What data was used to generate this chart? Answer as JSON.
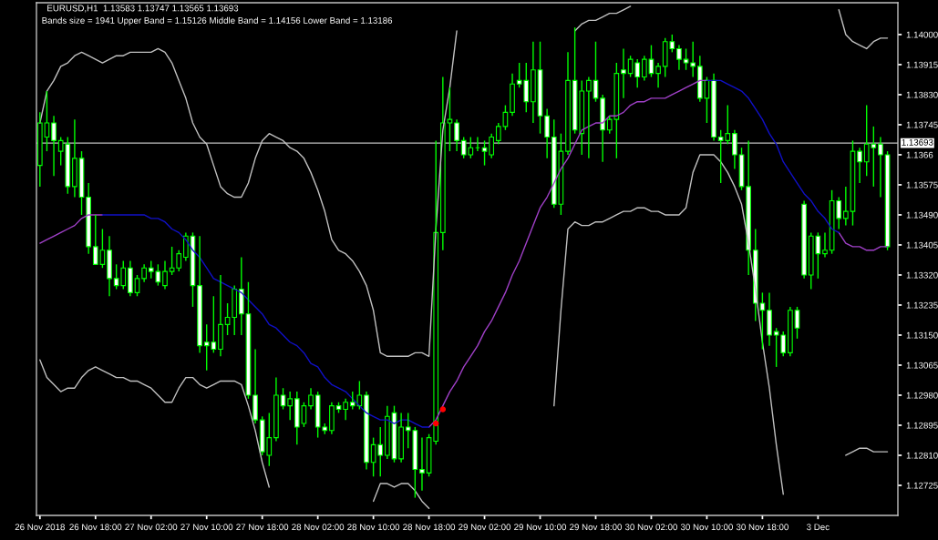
{
  "chart_data": {
    "type": "candlestick",
    "title": "EURUSD,H1  1.13583 1.13747 1.13565 1.13693",
    "subtitle": "Bands size = 1941 Upper Band = 1.15126 Middle Band = 1.14156 Lower Band = 1.13186",
    "categories": [
      "26 Nov 2018",
      null,
      null,
      null,
      null,
      null,
      null,
      null,
      "26 Nov 18:00",
      null,
      null,
      null,
      null,
      null,
      null,
      null,
      "27 Nov 02:00",
      null,
      null,
      null,
      null,
      null,
      null,
      null,
      "27 Nov 10:00",
      null,
      null,
      null,
      null,
      null,
      null,
      null,
      "27 Nov 18:00",
      null,
      null,
      null,
      null,
      null,
      null,
      null,
      "28 Nov 02:00",
      null,
      null,
      null,
      null,
      null,
      null,
      null,
      "28 Nov 10:00",
      null,
      null,
      null,
      null,
      null,
      null,
      null,
      "28 Nov 18:00",
      null,
      null,
      null,
      null,
      null,
      null,
      null,
      "29 Nov 02:00",
      null,
      null,
      null,
      null,
      null,
      null,
      null,
      "29 Nov 10:00",
      null,
      null,
      null,
      null,
      null,
      null,
      null,
      "29 Nov 18:00",
      null,
      null,
      null,
      null,
      null,
      null,
      null,
      "30 Nov 02:00",
      null,
      null,
      null,
      null,
      null,
      null,
      null,
      "30 Nov 10:00",
      null,
      null,
      null,
      null,
      null,
      null,
      null,
      "30 Nov 18:00",
      null,
      null,
      null,
      null,
      null,
      null,
      null,
      "3 Dec",
      null,
      null,
      null,
      null,
      null,
      null,
      null,
      null,
      null,
      null
    ],
    "ylim": [
      1.1264,
      1.1409
    ],
    "yticks": [
      1.12725,
      {
        "value": 1.1281,
        "label": "1.12810"
      },
      1.12895,
      {
        "value": 1.1298,
        "label": "1.12980"
      },
      1.13065,
      {
        "value": 1.1315,
        "label": "1.13150"
      },
      1.13235,
      {
        "value": 1.1332,
        "label": "1.13320"
      },
      1.13405,
      {
        "value": 1.1349,
        "label": "1.13490"
      },
      1.13575,
      1.1366,
      1.13745,
      {
        "value": 1.1383,
        "label": "1.13830"
      },
      1.13915,
      {
        "value": 1.14,
        "label": "1.14000"
      }
    ],
    "grid": false,
    "ref_lines": [
      {
        "axis": "y",
        "value": 1.13693,
        "label": "1.13693",
        "color": "#c0c0c0"
      }
    ],
    "series": [
      {
        "type": "line",
        "color": "#c0c0c0",
        "values": [
          1.1375,
          1.1384,
          1.1387,
          1.1391,
          1.1392,
          1.1394,
          1.1395,
          1.1394,
          1.1393,
          1.1392,
          1.1393,
          1.1394,
          1.1394,
          1.1395,
          1.1395,
          1.1395,
          1.1395,
          1.1396,
          1.1395,
          1.1392,
          1.1387,
          1.1382,
          1.1375,
          1.1371,
          1.1369,
          1.1363,
          1.1357,
          1.1355,
          1.1354,
          1.1354,
          1.1358,
          1.1365,
          1.137,
          1.1372,
          1.1371,
          1.137,
          1.1368,
          1.1367,
          1.1365,
          1.1361,
          1.1356,
          1.135,
          1.1342,
          1.1339,
          1.1338,
          1.1336,
          1.1333,
          1.1329,
          1.1322,
          1.131,
          1.1309,
          1.1309,
          1.1309,
          1.1309,
          1.131,
          1.131,
          1.1309,
          1.1345,
          1.1373,
          1.1385,
          1.1401,
          null,
          null,
          null,
          null,
          null,
          null,
          null,
          null,
          null,
          null,
          null,
          null,
          null,
          null,
          null,
          null,
          1.1401,
          1.1403,
          1.1404,
          1.1404,
          1.1405,
          1.1406,
          1.1406,
          1.1407,
          1.1408,
          null,
          null,
          null,
          null,
          null,
          null,
          null,
          null,
          null,
          null,
          null,
          null,
          null,
          null,
          null,
          null,
          null,
          null,
          null,
          null,
          null,
          null,
          null,
          null,
          null,
          null,
          null,
          null,
          null,
          1.1407,
          1.14,
          1.1398,
          1.1397,
          1.1396,
          1.1398,
          1.1399,
          1.1399
        ]
      },
      {
        "type": "line",
        "color": "#c0c0c0",
        "values": [
          1.1308,
          1.1303,
          1.1301,
          1.1299,
          1.13,
          1.13,
          1.1303,
          1.1305,
          1.1306,
          1.1305,
          1.1304,
          1.1303,
          1.1303,
          1.1302,
          1.1302,
          1.1301,
          1.13,
          1.1298,
          1.1296,
          1.1296,
          1.13,
          1.1303,
          1.1303,
          1.1301,
          1.13,
          1.1301,
          1.1302,
          1.1302,
          1.1302,
          1.1301,
          1.1295,
          1.1288,
          1.1279,
          1.1272,
          null,
          null,
          null,
          null,
          null,
          null,
          null,
          null,
          null,
          null,
          null,
          null,
          null,
          null,
          1.1268,
          1.1273,
          1.1273,
          1.1272,
          1.1273,
          1.1273,
          1.1271,
          1.1268,
          1.1266,
          null,
          null,
          null,
          null,
          null,
          null,
          null,
          null,
          null,
          null,
          null,
          null,
          null,
          null,
          null,
          null,
          null,
          1.1295,
          1.1322,
          1.1345,
          1.1347,
          1.1346,
          1.1346,
          1.1347,
          1.1347,
          1.1348,
          1.1349,
          1.135,
          1.135,
          1.1351,
          1.1351,
          1.135,
          1.135,
          1.1349,
          1.1349,
          1.1349,
          1.1351,
          1.1361,
          1.1366,
          1.1366,
          1.1366,
          1.1364,
          1.1361,
          1.1357,
          1.1352,
          1.1341,
          1.1328,
          1.1313,
          1.13,
          1.1284,
          1.127,
          null,
          null,
          null,
          null,
          null,
          null,
          null,
          null,
          1.1281,
          1.1282,
          1.1283,
          1.1283,
          1.1282,
          1.1282,
          1.1282
        ]
      },
      {
        "type": "line",
        "color": "#a040c8",
        "values": [
          1.1341,
          1.1342,
          1.1343,
          1.1344,
          1.1345,
          1.1346,
          1.1348,
          1.1349,
          1.1349,
          1.1349,
          null,
          null,
          null,
          null,
          null,
          null,
          null,
          null,
          null,
          null,
          null,
          null,
          null,
          null,
          null,
          null,
          null,
          null,
          null,
          null,
          null,
          null,
          null,
          null,
          null,
          null,
          null,
          null,
          null,
          null,
          null,
          null,
          null,
          null,
          null,
          null,
          null,
          null,
          null,
          null,
          null,
          null,
          null,
          null,
          null,
          null,
          1.1289,
          1.1291,
          1.1295,
          1.1299,
          1.1302,
          1.1306,
          1.1309,
          1.1312,
          1.1316,
          1.1319,
          1.1323,
          1.1327,
          1.1332,
          1.1336,
          1.1341,
          1.1346,
          1.1351,
          1.1354,
          1.1358,
          1.1362,
          1.1365,
          1.1369,
          1.1373,
          1.1374,
          1.1375,
          1.1375,
          1.1377,
          1.1377,
          1.1378,
          1.138,
          1.1381,
          1.1381,
          1.1382,
          1.1382,
          1.1382,
          1.1383,
          1.1384,
          1.1385,
          1.1386,
          1.1387,
          1.1387,
          null,
          null,
          null,
          null,
          null,
          null,
          null,
          null,
          null,
          null,
          null,
          null,
          null,
          null,
          null,
          null,
          null,
          null,
          1.1344,
          1.1341,
          1.134,
          1.134,
          1.1339,
          1.1339,
          1.134,
          1.134
        ]
      },
      {
        "type": "line",
        "color": "#1010c8",
        "values": [
          null,
          null,
          null,
          null,
          null,
          null,
          null,
          null,
          null,
          1.1349,
          1.1349,
          1.1349,
          1.1349,
          1.1349,
          1.1349,
          1.1349,
          1.1348,
          1.1348,
          1.1347,
          1.1345,
          1.1344,
          1.1342,
          1.1339,
          1.1337,
          1.1334,
          1.1331,
          1.133,
          1.1329,
          1.1328,
          1.1327,
          1.1325,
          1.1323,
          1.1321,
          1.1318,
          1.1317,
          1.1315,
          1.1313,
          1.1312,
          1.131,
          1.1307,
          1.1306,
          1.1303,
          1.1301,
          1.13,
          1.1299,
          1.1297,
          1.1295,
          1.1293,
          1.1292,
          1.1291,
          1.1291,
          1.129,
          1.1291,
          1.1291,
          1.129,
          1.1289,
          1.1289,
          null,
          null,
          null,
          null,
          null,
          null,
          null,
          null,
          null,
          null,
          null,
          null,
          null,
          null,
          null,
          null,
          null,
          null,
          null,
          null,
          null,
          null,
          null,
          null,
          null,
          null,
          null,
          null,
          null,
          null,
          null,
          null,
          null,
          null,
          null,
          null,
          null,
          null,
          null,
          1.1387,
          1.1387,
          1.1387,
          1.1386,
          1.1385,
          1.1384,
          1.1382,
          1.1379,
          1.1376,
          1.1372,
          1.1369,
          1.1364,
          1.1361,
          1.1358,
          1.1355,
          1.1353,
          1.135,
          1.1348,
          1.1345,
          1.1344,
          null,
          null,
          null,
          null,
          null,
          null,
          null
        ]
      },
      {
        "type": "candlestick",
        "color": "#00ff00",
        "ohlc": [
          [
            1.1363,
            1.1378,
            1.1357,
            1.1375
          ],
          [
            1.1371,
            1.1384,
            1.1367,
            1.1375
          ],
          [
            1.1375,
            1.1377,
            1.136,
            1.137
          ],
          [
            1.1367,
            1.1371,
            1.1363,
            1.137
          ],
          [
            1.1369,
            1.1371,
            1.1355,
            1.1357
          ],
          [
            1.1357,
            1.1376,
            1.1354,
            1.1365
          ],
          [
            1.1365,
            1.1367,
            1.1349,
            1.1354
          ],
          [
            1.1354,
            1.1358,
            1.1338,
            1.134
          ],
          [
            1.134,
            1.1349,
            1.1335,
            1.1335
          ],
          [
            1.1335,
            1.1345,
            1.1334,
            1.1339
          ],
          [
            1.1339,
            1.1343,
            1.1326,
            1.1331
          ],
          [
            1.1331,
            1.1335,
            1.1328,
            1.1329
          ],
          [
            1.1329,
            1.1336,
            1.1328,
            1.1334
          ],
          [
            1.1334,
            1.1336,
            1.1326,
            1.1327
          ],
          [
            1.1327,
            1.1332,
            1.1326,
            1.1331
          ],
          [
            1.1331,
            1.1335,
            1.133,
            1.1334
          ],
          [
            1.1334,
            1.1336,
            1.1331,
            1.1333
          ],
          [
            1.1333,
            1.1335,
            1.1329,
            1.133
          ],
          [
            1.1329,
            1.1336,
            1.1328,
            1.1333
          ],
          [
            1.1333,
            1.134,
            1.1332,
            1.1334
          ],
          [
            1.1334,
            1.1339,
            1.1333,
            1.1338
          ],
          [
            1.1337,
            1.1344,
            1.1336,
            1.1343
          ],
          [
            1.1343,
            1.1344,
            1.1323,
            1.1329
          ],
          [
            1.1329,
            1.1343,
            1.131,
            1.1312
          ],
          [
            1.1313,
            1.1318,
            1.1305,
            1.1312
          ],
          [
            1.1313,
            1.1326,
            1.131,
            1.1311
          ],
          [
            1.1311,
            1.1332,
            1.1309,
            1.1318
          ],
          [
            1.1318,
            1.1324,
            1.1315,
            1.132
          ],
          [
            1.132,
            1.1329,
            1.1315,
            1.1328
          ],
          [
            1.1328,
            1.1337,
            1.1315,
            1.1321
          ],
          [
            1.1321,
            1.133,
            1.1297,
            1.1298
          ],
          [
            1.1298,
            1.1311,
            1.129,
            1.1291
          ],
          [
            1.1291,
            1.1292,
            1.1281,
            1.1282
          ],
          [
            1.1281,
            1.1293,
            1.1278,
            1.1286
          ],
          [
            1.1286,
            1.1303,
            1.1285,
            1.1298
          ],
          [
            1.1298,
            1.13,
            1.1294,
            1.1295
          ],
          [
            1.1295,
            1.1299,
            1.1291,
            1.1297
          ],
          [
            1.1297,
            1.1299,
            1.1284,
            1.1289
          ],
          [
            1.129,
            1.1296,
            1.1289,
            1.1295
          ],
          [
            1.1295,
            1.13,
            1.1294,
            1.1298
          ],
          [
            1.1298,
            1.1299,
            1.1286,
            1.1289
          ],
          [
            1.1289,
            1.129,
            1.1287,
            1.1288
          ],
          [
            1.1288,
            1.1296,
            1.1287,
            1.1295
          ],
          [
            1.1295,
            1.1296,
            1.1293,
            1.1294
          ],
          [
            1.1294,
            1.1297,
            1.1291,
            1.1296
          ],
          [
            1.1296,
            1.1299,
            1.1294,
            1.1295
          ],
          [
            1.1295,
            1.1302,
            1.1294,
            1.1298
          ],
          [
            1.1298,
            1.1299,
            1.1277,
            1.1279
          ],
          [
            1.1279,
            1.1286,
            1.1275,
            1.1284
          ],
          [
            1.1284,
            1.1289,
            1.1275,
            1.1281
          ],
          [
            1.1281,
            1.1295,
            1.128,
            1.1292
          ],
          [
            1.1293,
            1.1295,
            1.1279,
            1.128
          ],
          [
            1.128,
            1.1293,
            1.1279,
            1.1289
          ],
          [
            1.1289,
            1.1293,
            1.1283,
            1.1288
          ],
          [
            1.1288,
            1.1289,
            1.1269,
            1.1277
          ],
          [
            1.1277,
            1.1286,
            1.1271,
            1.1276
          ],
          [
            1.1276,
            1.1287,
            1.1275,
            1.1286
          ],
          [
            1.1285,
            1.137,
            1.1284,
            1.1344
          ],
          [
            1.1344,
            1.1388,
            1.1339,
            1.1375
          ],
          [
            1.1375,
            1.1385,
            1.1367,
            1.1376
          ],
          [
            1.1375,
            1.1376,
            1.1367,
            1.137
          ],
          [
            1.137,
            1.1371,
            1.1365,
            1.1366
          ],
          [
            1.1366,
            1.1371,
            1.1365,
            1.1368
          ],
          [
            1.1368,
            1.1371,
            1.1367,
            1.1368
          ],
          [
            1.1368,
            1.137,
            1.1363,
            1.1367
          ],
          [
            1.1366,
            1.1372,
            1.1365,
            1.1371
          ],
          [
            1.137,
            1.1375,
            1.1369,
            1.1374
          ],
          [
            1.1374,
            1.138,
            1.1373,
            1.1378
          ],
          [
            1.1378,
            1.1389,
            1.1377,
            1.1386
          ],
          [
            1.1387,
            1.1392,
            1.1385,
            1.1386
          ],
          [
            1.1387,
            1.1392,
            1.1378,
            1.1381
          ],
          [
            1.1381,
            1.1398,
            1.1375,
            1.139
          ],
          [
            1.139,
            1.1398,
            1.1372,
            1.1377
          ],
          [
            1.1377,
            1.1379,
            1.1365,
            1.1371
          ],
          [
            1.1371,
            1.1376,
            1.1351,
            1.1352
          ],
          [
            1.1352,
            1.1372,
            1.1349,
            1.1367
          ],
          [
            1.1367,
            1.1395,
            1.1366,
            1.1387
          ],
          [
            1.1387,
            1.1402,
            1.1372,
            1.1373
          ],
          [
            1.1372,
            1.1387,
            1.1366,
            1.1384
          ],
          [
            1.1384,
            1.1388,
            1.1365,
            1.1387
          ],
          [
            1.1387,
            1.1398,
            1.1381,
            1.1382
          ],
          [
            1.1382,
            1.1383,
            1.1364,
            1.1373
          ],
          [
            1.1373,
            1.1377,
            1.1372,
            1.1376
          ],
          [
            1.1376,
            1.1392,
            1.1365,
            1.1389
          ],
          [
            1.139,
            1.1396,
            1.1382,
            1.1389
          ],
          [
            1.1389,
            1.1394,
            1.1388,
            1.1393
          ],
          [
            1.1392,
            1.1393,
            1.1385,
            1.1388
          ],
          [
            1.1388,
            1.1394,
            1.1387,
            1.1393
          ],
          [
            1.1393,
            1.1397,
            1.1388,
            1.1389
          ],
          [
            1.1389,
            1.1392,
            1.1385,
            1.1391
          ],
          [
            1.1391,
            1.1399,
            1.1388,
            1.1398
          ],
          [
            1.1398,
            1.14,
            1.1395,
            1.1396
          ],
          [
            1.1396,
            1.1397,
            1.139,
            1.1393
          ],
          [
            1.1393,
            1.1396,
            1.139,
            1.1392
          ],
          [
            1.1392,
            1.1398,
            1.1388,
            1.1391
          ],
          [
            1.1391,
            1.1394,
            1.1381,
            1.1382
          ],
          [
            1.1382,
            1.1388,
            1.1375,
            1.1387
          ],
          [
            1.1387,
            1.1389,
            1.137,
            1.1371
          ],
          [
            1.1371,
            1.1373,
            1.1358,
            1.137
          ],
          [
            1.137,
            1.138,
            1.1369,
            1.1372
          ],
          [
            1.1372,
            1.1373,
            1.1362,
            1.1366
          ],
          [
            1.1366,
            1.1368,
            1.1356,
            1.1357
          ],
          [
            1.1357,
            1.137,
            1.1332,
            1.1339
          ],
          [
            1.1339,
            1.1345,
            1.1319,
            1.1324
          ],
          [
            1.1324,
            1.1327,
            1.1311,
            1.1322
          ],
          [
            1.1322,
            1.1327,
            1.1312,
            1.1315
          ],
          [
            1.1316,
            1.1317,
            1.1306,
            1.1315
          ],
          [
            1.1315,
            1.1316,
            1.1309,
            1.131
          ],
          [
            1.131,
            1.1323,
            1.1309,
            1.1322
          ],
          [
            1.1322,
            1.1323,
            1.1314,
            1.1317
          ],
          [
            1.1352,
            1.1353,
            1.1331,
            1.1332
          ],
          [
            1.1332,
            1.1344,
            1.1328,
            1.1343
          ],
          [
            1.1343,
            1.1344,
            1.1331,
            1.1338
          ],
          [
            1.1338,
            1.1344,
            1.1337,
            1.1339
          ],
          [
            1.1339,
            1.1356,
            1.1338,
            1.1353
          ],
          [
            1.1353,
            1.1354,
            1.1345,
            1.1348
          ],
          [
            1.1348,
            1.1357,
            1.1346,
            1.135
          ],
          [
            1.135,
            1.137,
            1.1346,
            1.1367
          ],
          [
            1.1367,
            1.1368,
            1.1358,
            1.1364
          ],
          [
            1.1364,
            1.138,
            1.136,
            1.1369
          ],
          [
            1.1369,
            1.1374,
            1.1357,
            1.1368
          ],
          [
            1.1369,
            1.1371,
            1.1354,
            1.1366
          ],
          [
            1.1366,
            1.1367,
            1.1339,
            1.134
          ]
        ]
      },
      {
        "type": "scatter",
        "color": "#ff0000",
        "values": [
          null,
          null,
          null,
          null,
          null,
          null,
          null,
          null,
          null,
          null,
          null,
          null,
          null,
          null,
          null,
          null,
          null,
          null,
          null,
          null,
          null,
          null,
          null,
          null,
          null,
          null,
          null,
          null,
          null,
          null,
          null,
          null,
          null,
          null,
          null,
          null,
          null,
          null,
          null,
          null,
          null,
          null,
          null,
          null,
          null,
          null,
          null,
          null,
          null,
          null,
          null,
          null,
          null,
          null,
          null,
          null,
          null,
          1.129,
          1.1294,
          null,
          null,
          null,
          null,
          null,
          null,
          null,
          null,
          null,
          null,
          null,
          null,
          null,
          null,
          null,
          null,
          null,
          null,
          null,
          null,
          null,
          null,
          null,
          null,
          null,
          null,
          null,
          null,
          null,
          null,
          null,
          null,
          null,
          null,
          null,
          null,
          null,
          null,
          null,
          null,
          null,
          null,
          null,
          null,
          null,
          null,
          null,
          null,
          null,
          null,
          null,
          null,
          null,
          null,
          null,
          null,
          null,
          null,
          null,
          null,
          null,
          null,
          null,
          null
        ]
      }
    ]
  }
}
